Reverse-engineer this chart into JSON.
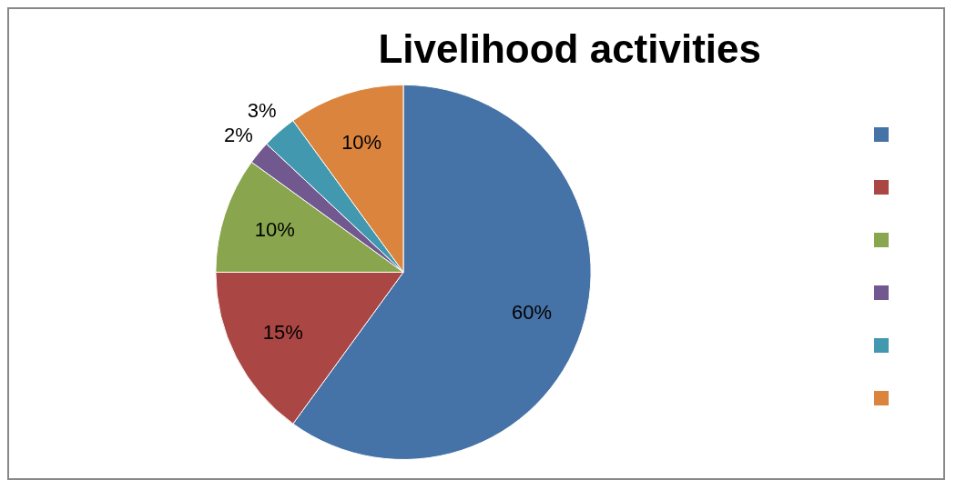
{
  "chart_data": {
    "type": "pie",
    "title": "Livelihood activities",
    "categories": [
      null,
      null,
      null,
      null,
      null,
      null
    ],
    "values": [
      60,
      15,
      10,
      2,
      3,
      10
    ],
    "value_labels": [
      "60%",
      "15%",
      "10%",
      "2%",
      "3%",
      "10%"
    ],
    "colors": [
      "#4572a7",
      "#aa4643",
      "#89a54e",
      "#71588f",
      "#4198af",
      "#db843d"
    ]
  }
}
